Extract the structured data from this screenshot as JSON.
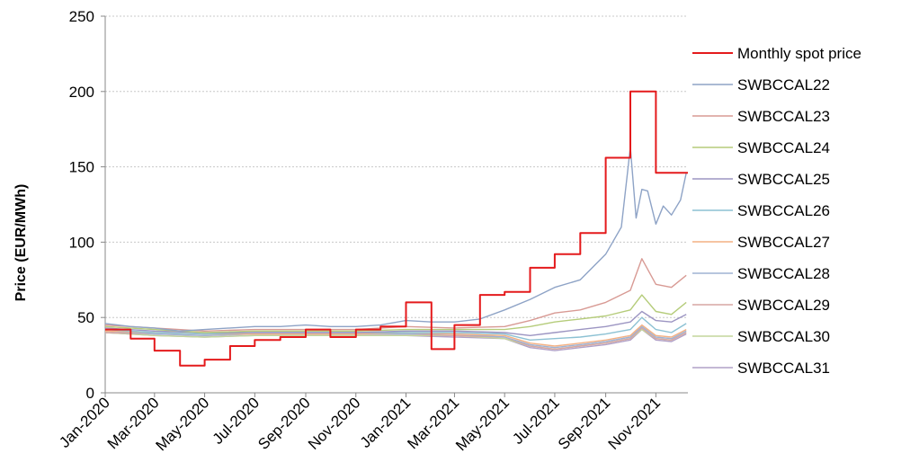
{
  "chart_data": {
    "type": "line",
    "ylabel": "Price (EUR/MWh)",
    "xlabel": "",
    "ylim": [
      0,
      250
    ],
    "yticks": [
      0,
      50,
      100,
      150,
      200,
      250
    ],
    "xlim": [
      "2020-01-01",
      "2021-12-10"
    ],
    "xtick_labels": [
      "Jan-2020",
      "Mar-2020",
      "May-2020",
      "Jul-2020",
      "Sep-2020",
      "Nov-2020",
      "Jan-2021",
      "Mar-2021",
      "May-2021",
      "Jul-2021",
      "Sep-2021",
      "Nov-2021"
    ],
    "xtick_dates": [
      "2020-01-01",
      "2020-03-01",
      "2020-05-01",
      "2020-07-01",
      "2020-09-01",
      "2020-11-01",
      "2021-01-01",
      "2021-03-01",
      "2021-05-01",
      "2021-07-01",
      "2021-09-01",
      "2021-11-01"
    ],
    "grid": "horizontal",
    "legend_position": "right",
    "series": [
      {
        "name": "Monthly spot price",
        "color": "#e41a1c",
        "step": true,
        "x": [
          "2020-01-01",
          "2020-02-01",
          "2020-03-01",
          "2020-04-01",
          "2020-05-01",
          "2020-06-01",
          "2020-07-01",
          "2020-08-01",
          "2020-09-01",
          "2020-10-01",
          "2020-11-01",
          "2020-12-01",
          "2021-01-01",
          "2021-02-01",
          "2021-03-01",
          "2021-04-01",
          "2021-05-01",
          "2021-06-01",
          "2021-07-01",
          "2021-08-01",
          "2021-09-01",
          "2021-10-01",
          "2021-11-01",
          "2021-12-01"
        ],
        "values": [
          42,
          36,
          28,
          18,
          22,
          31,
          35,
          37,
          42,
          37,
          42,
          44,
          60,
          29,
          45,
          65,
          67,
          83,
          92,
          106,
          156,
          200,
          146,
          146
        ]
      },
      {
        "name": "SWBCCAL22",
        "color": "#8ea3c6",
        "x": [
          "2020-01-01",
          "2020-02-01",
          "2020-03-01",
          "2020-04-01",
          "2020-05-01",
          "2020-06-01",
          "2020-07-01",
          "2020-08-01",
          "2020-09-01",
          "2020-10-01",
          "2020-11-01",
          "2020-12-01",
          "2021-01-01",
          "2021-02-01",
          "2021-03-01",
          "2021-04-01",
          "2021-05-01",
          "2021-06-01",
          "2021-07-01",
          "2021-08-01",
          "2021-09-01",
          "2021-09-20",
          "2021-10-01",
          "2021-10-08",
          "2021-10-15",
          "2021-10-22",
          "2021-11-01",
          "2021-11-10",
          "2021-11-20",
          "2021-12-01",
          "2021-12-08"
        ],
        "values": [
          46,
          44,
          43,
          41,
          42,
          43,
          44,
          44,
          45,
          44,
          44,
          45,
          48,
          47,
          47,
          49,
          55,
          62,
          70,
          75,
          92,
          110,
          163,
          116,
          135,
          134,
          112,
          124,
          118,
          128,
          146
        ]
      },
      {
        "name": "SWBCCAL23",
        "color": "#d89a94",
        "x": [
          "2020-01-01",
          "2020-03-01",
          "2020-05-01",
          "2020-07-01",
          "2020-09-01",
          "2020-11-01",
          "2021-01-01",
          "2021-03-01",
          "2021-05-01",
          "2021-06-01",
          "2021-07-01",
          "2021-08-01",
          "2021-09-01",
          "2021-10-01",
          "2021-10-15",
          "2021-11-01",
          "2021-11-20",
          "2021-12-08"
        ],
        "values": [
          45,
          43,
          41,
          42,
          42,
          42,
          44,
          43,
          44,
          48,
          53,
          55,
          60,
          68,
          89,
          72,
          70,
          78
        ]
      },
      {
        "name": "SWBCCAL24",
        "color": "#b5cc7a",
        "x": [
          "2020-01-01",
          "2020-03-01",
          "2020-05-01",
          "2020-07-01",
          "2020-09-01",
          "2020-11-01",
          "2021-01-01",
          "2021-03-01",
          "2021-05-01",
          "2021-06-01",
          "2021-07-01",
          "2021-08-01",
          "2021-09-01",
          "2021-10-01",
          "2021-10-15",
          "2021-11-01",
          "2021-11-20",
          "2021-12-08"
        ],
        "values": [
          44,
          42,
          40,
          41,
          41,
          41,
          42,
          42,
          42,
          44,
          47,
          49,
          51,
          55,
          65,
          54,
          52,
          60
        ]
      },
      {
        "name": "SWBCCAL25",
        "color": "#9c95c2",
        "x": [
          "2020-01-01",
          "2020-03-01",
          "2020-05-01",
          "2020-07-01",
          "2020-09-01",
          "2020-11-01",
          "2021-01-01",
          "2021-03-01",
          "2021-05-01",
          "2021-06-01",
          "2021-07-01",
          "2021-08-01",
          "2021-09-01",
          "2021-10-01",
          "2021-10-15",
          "2021-11-01",
          "2021-11-20",
          "2021-12-08"
        ],
        "values": [
          43,
          41,
          40,
          40,
          40,
          40,
          41,
          41,
          40,
          38,
          40,
          42,
          44,
          47,
          54,
          48,
          47,
          52
        ]
      },
      {
        "name": "SWBCCAL26",
        "color": "#8cc1d3",
        "x": [
          "2020-01-01",
          "2020-03-01",
          "2020-05-01",
          "2020-07-01",
          "2020-09-01",
          "2020-11-01",
          "2021-01-01",
          "2021-03-01",
          "2021-05-01",
          "2021-06-01",
          "2021-07-01",
          "2021-08-01",
          "2021-09-01",
          "2021-10-01",
          "2021-10-15",
          "2021-11-01",
          "2021-11-20",
          "2021-12-08"
        ],
        "values": [
          42,
          40,
          39,
          40,
          40,
          40,
          40,
          40,
          39,
          35,
          36,
          37,
          39,
          42,
          50,
          42,
          40,
          46
        ]
      },
      {
        "name": "SWBCCAL27",
        "color": "#f4b183",
        "x": [
          "2020-01-01",
          "2020-03-01",
          "2020-05-01",
          "2020-07-01",
          "2020-09-01",
          "2020-11-01",
          "2021-01-01",
          "2021-03-01",
          "2021-05-01",
          "2021-06-01",
          "2021-07-01",
          "2021-08-01",
          "2021-09-01",
          "2021-10-01",
          "2021-10-15",
          "2021-11-01",
          "2021-11-20",
          "2021-12-08"
        ],
        "values": [
          41,
          40,
          39,
          39,
          39,
          39,
          40,
          39,
          38,
          33,
          31,
          33,
          35,
          38,
          45,
          38,
          37,
          42
        ]
      },
      {
        "name": "SWBCCAL28",
        "color": "#9fb3d4",
        "x": [
          "2020-01-01",
          "2020-03-01",
          "2020-05-01",
          "2020-07-01",
          "2020-09-01",
          "2020-11-01",
          "2021-01-01",
          "2021-03-01",
          "2021-05-01",
          "2021-06-01",
          "2021-07-01",
          "2021-08-01",
          "2021-09-01",
          "2021-10-01",
          "2021-10-15",
          "2021-11-01",
          "2021-11-20",
          "2021-12-08"
        ],
        "values": [
          41,
          39,
          38,
          39,
          39,
          39,
          39,
          39,
          37,
          32,
          30,
          32,
          34,
          37,
          44,
          37,
          36,
          41
        ]
      },
      {
        "name": "SWBCCAL29",
        "color": "#d7a6a3",
        "x": [
          "2020-01-01",
          "2020-03-01",
          "2020-05-01",
          "2020-07-01",
          "2020-09-01",
          "2020-11-01",
          "2021-01-01",
          "2021-03-01",
          "2021-05-01",
          "2021-06-01",
          "2021-07-01",
          "2021-08-01",
          "2021-09-01",
          "2021-10-01",
          "2021-10-15",
          "2021-11-01",
          "2021-11-20",
          "2021-12-08"
        ],
        "values": [
          40,
          39,
          38,
          39,
          39,
          39,
          39,
          38,
          37,
          31,
          29,
          31,
          33,
          36,
          43,
          36,
          35,
          40
        ]
      },
      {
        "name": "SWBCCAL30",
        "color": "#c3d69b",
        "x": [
          "2020-01-01",
          "2020-03-01",
          "2020-05-01",
          "2020-07-01",
          "2020-09-01",
          "2020-11-01",
          "2021-01-01",
          "2021-03-01",
          "2021-05-01",
          "2021-06-01",
          "2021-07-01",
          "2021-08-01",
          "2021-09-01",
          "2021-10-01",
          "2021-10-15",
          "2021-11-01",
          "2021-11-20",
          "2021-12-08"
        ],
        "values": [
          40,
          38,
          37,
          38,
          38,
          38,
          38,
          38,
          36,
          31,
          29,
          31,
          33,
          36,
          42,
          36,
          35,
          40
        ]
      },
      {
        "name": "SWBCCAL31",
        "color": "#b1a0c7",
        "x": [
          "2020-01-01",
          "2020-03-01",
          "2020-05-01",
          "2020-07-01",
          "2020-09-01",
          "2020-11-01",
          "2021-01-01",
          "2021-03-01",
          "2021-05-01",
          "2021-06-01",
          "2021-07-01",
          "2021-08-01",
          "2021-09-01",
          "2021-10-01",
          "2021-10-15",
          "2021-11-01",
          "2021-11-20",
          "2021-12-08"
        ],
        "values": [
          40,
          38,
          37,
          38,
          38,
          38,
          38,
          37,
          36,
          30,
          28,
          30,
          32,
          35,
          42,
          35,
          34,
          39
        ]
      }
    ]
  }
}
